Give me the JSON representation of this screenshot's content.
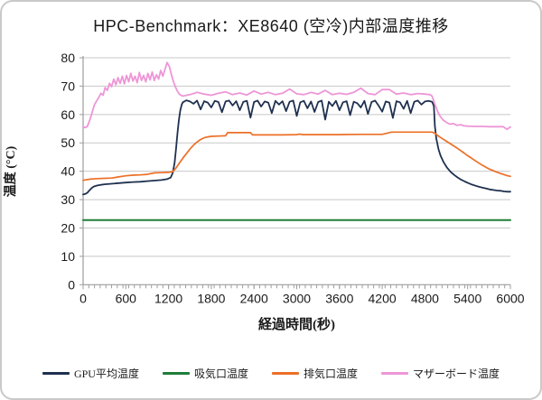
{
  "card": {
    "title": "HPC-Benchmark：XE8640 (空冷)内部温度推移"
  },
  "chart_data": {
    "type": "line",
    "title": "HPC-Benchmark：XE8640 (空冷)内部温度推移",
    "xlabel": "経過時間(秒)",
    "ylabel": "温度 (°C)",
    "xlim": [
      0,
      6000
    ],
    "ylim": [
      0,
      80
    ],
    "x_ticks": [
      0,
      600,
      1200,
      1800,
      2400,
      3000,
      3600,
      4200,
      4800,
      5400,
      6000
    ],
    "y_ticks": [
      0,
      10,
      20,
      30,
      40,
      50,
      60,
      70,
      80
    ],
    "x_minor_tick_interval": 80,
    "grid": "horizontal",
    "grid_color": "#c8c8c8",
    "axis_color": "#9d9d9d",
    "legend_position": "bottom",
    "series": [
      {
        "name": "GPU平均温度",
        "id": "gpu",
        "color": "#1f3050",
        "width": 1.8,
        "points": [
          [
            0,
            31.8
          ],
          [
            30,
            32.0
          ],
          [
            60,
            32.4
          ],
          [
            90,
            33.3
          ],
          [
            120,
            34.1
          ],
          [
            150,
            34.6
          ],
          [
            200,
            35.0
          ],
          [
            250,
            35.2
          ],
          [
            300,
            35.4
          ],
          [
            400,
            35.6
          ],
          [
            500,
            35.8
          ],
          [
            600,
            36.0
          ],
          [
            700,
            36.2
          ],
          [
            800,
            36.3
          ],
          [
            900,
            36.5
          ],
          [
            1000,
            36.7
          ],
          [
            1100,
            36.9
          ],
          [
            1180,
            37.2
          ],
          [
            1230,
            37.8
          ],
          [
            1260,
            39.5
          ],
          [
            1285,
            43.0
          ],
          [
            1305,
            48.0
          ],
          [
            1325,
            53.5
          ],
          [
            1345,
            58.0
          ],
          [
            1365,
            61.5
          ],
          [
            1385,
            63.5
          ],
          [
            1400,
            64.3
          ],
          [
            1450,
            65.0
          ],
          [
            1500,
            64.6
          ],
          [
            1550,
            63.8
          ],
          [
            1600,
            64.9
          ],
          [
            1650,
            61.8
          ],
          [
            1700,
            64.7
          ],
          [
            1750,
            64.2
          ],
          [
            1800,
            62.5
          ],
          [
            1850,
            64.8
          ],
          [
            1900,
            64.4
          ],
          [
            1950,
            60.8
          ],
          [
            2000,
            64.6
          ],
          [
            2050,
            64.9
          ],
          [
            2100,
            63.2
          ],
          [
            2150,
            64.7
          ],
          [
            2200,
            61.5
          ],
          [
            2250,
            64.5
          ],
          [
            2300,
            64.8
          ],
          [
            2350,
            58.9
          ],
          [
            2400,
            64.4
          ],
          [
            2450,
            64.9
          ],
          [
            2500,
            62.8
          ],
          [
            2550,
            64.6
          ],
          [
            2600,
            64.2
          ],
          [
            2650,
            60.5
          ],
          [
            2700,
            64.8
          ],
          [
            2750,
            63.5
          ],
          [
            2800,
            64.7
          ],
          [
            2850,
            61.2
          ],
          [
            2900,
            64.5
          ],
          [
            2950,
            64.9
          ],
          [
            3000,
            59.5
          ],
          [
            3050,
            64.3
          ],
          [
            3100,
            64.8
          ],
          [
            3150,
            62.2
          ],
          [
            3200,
            64.6
          ],
          [
            3250,
            60.9
          ],
          [
            3300,
            64.4
          ],
          [
            3350,
            64.9
          ],
          [
            3400,
            58.2
          ],
          [
            3450,
            64.5
          ],
          [
            3500,
            63.0
          ],
          [
            3550,
            64.8
          ],
          [
            3600,
            61.5
          ],
          [
            3650,
            64.3
          ],
          [
            3700,
            64.7
          ],
          [
            3750,
            59.8
          ],
          [
            3800,
            64.5
          ],
          [
            3850,
            64.0
          ],
          [
            3900,
            62.5
          ],
          [
            3950,
            64.8
          ],
          [
            4000,
            60.2
          ],
          [
            4050,
            64.4
          ],
          [
            4100,
            64.9
          ],
          [
            4150,
            63.1
          ],
          [
            4200,
            61.0
          ],
          [
            4250,
            64.6
          ],
          [
            4300,
            64.2
          ],
          [
            4350,
            58.8
          ],
          [
            4400,
            64.7
          ],
          [
            4450,
            64.3
          ],
          [
            4500,
            62.0
          ],
          [
            4550,
            64.8
          ],
          [
            4600,
            60.5
          ],
          [
            4650,
            64.5
          ],
          [
            4700,
            64.9
          ],
          [
            4750,
            63.5
          ],
          [
            4800,
            64.6
          ],
          [
            4850,
            64.8
          ],
          [
            4900,
            64.5
          ],
          [
            4925,
            63.0
          ],
          [
            4940,
            56.0
          ],
          [
            4960,
            51.5
          ],
          [
            4990,
            47.8
          ],
          [
            5020,
            45.5
          ],
          [
            5060,
            43.3
          ],
          [
            5110,
            41.3
          ],
          [
            5160,
            39.8
          ],
          [
            5210,
            38.7
          ],
          [
            5260,
            37.8
          ],
          [
            5310,
            37.0
          ],
          [
            5360,
            36.4
          ],
          [
            5410,
            35.8
          ],
          [
            5460,
            35.3
          ],
          [
            5510,
            34.9
          ],
          [
            5560,
            34.5
          ],
          [
            5610,
            34.2
          ],
          [
            5660,
            33.9
          ],
          [
            5710,
            33.6
          ],
          [
            5760,
            33.4
          ],
          [
            5810,
            33.2
          ],
          [
            5860,
            33.1
          ],
          [
            5910,
            32.9
          ],
          [
            5960,
            32.8
          ],
          [
            6000,
            32.8
          ]
        ]
      },
      {
        "name": "吸気口温度",
        "id": "intake",
        "color": "#1f7d38",
        "width": 2,
        "points": [
          [
            0,
            22.8
          ],
          [
            3000,
            22.8
          ],
          [
            6000,
            22.8
          ]
        ]
      },
      {
        "name": "排気口温度",
        "id": "exhaust",
        "color": "#ec6f26",
        "width": 1.7,
        "points": [
          [
            0,
            36.8
          ],
          [
            100,
            37.2
          ],
          [
            200,
            37.4
          ],
          [
            300,
            37.5
          ],
          [
            400,
            37.6
          ],
          [
            500,
            38.0
          ],
          [
            600,
            38.4
          ],
          [
            700,
            38.6
          ],
          [
            800,
            38.7
          ],
          [
            900,
            38.9
          ],
          [
            1000,
            39.4
          ],
          [
            1100,
            39.5
          ],
          [
            1200,
            39.6
          ],
          [
            1260,
            39.9
          ],
          [
            1300,
            41.0
          ],
          [
            1350,
            42.8
          ],
          [
            1400,
            44.6
          ],
          [
            1450,
            46.2
          ],
          [
            1500,
            47.8
          ],
          [
            1550,
            49.2
          ],
          [
            1600,
            50.3
          ],
          [
            1650,
            51.2
          ],
          [
            1700,
            51.8
          ],
          [
            1750,
            52.1
          ],
          [
            1800,
            52.3
          ],
          [
            1900,
            52.4
          ],
          [
            2000,
            52.5
          ],
          [
            2030,
            53.6
          ],
          [
            2350,
            53.6
          ],
          [
            2380,
            52.8
          ],
          [
            2600,
            52.8
          ],
          [
            2800,
            52.8
          ],
          [
            3000,
            52.9
          ],
          [
            3040,
            53.1
          ],
          [
            3080,
            52.9
          ],
          [
            3300,
            52.9
          ],
          [
            3600,
            52.9
          ],
          [
            3900,
            53.0
          ],
          [
            4200,
            53.0
          ],
          [
            4330,
            53.8
          ],
          [
            4600,
            53.8
          ],
          [
            4900,
            53.8
          ],
          [
            4940,
            53.4
          ],
          [
            4970,
            52.8
          ],
          [
            5000,
            52.2
          ],
          [
            5050,
            51.4
          ],
          [
            5100,
            50.6
          ],
          [
            5150,
            49.8
          ],
          [
            5200,
            49.0
          ],
          [
            5250,
            48.2
          ],
          [
            5300,
            47.3
          ],
          [
            5350,
            46.4
          ],
          [
            5400,
            45.5
          ],
          [
            5450,
            44.7
          ],
          [
            5500,
            43.8
          ],
          [
            5550,
            43.0
          ],
          [
            5600,
            42.2
          ],
          [
            5650,
            41.5
          ],
          [
            5700,
            40.8
          ],
          [
            5750,
            40.3
          ],
          [
            5800,
            39.8
          ],
          [
            5850,
            39.3
          ],
          [
            5900,
            38.9
          ],
          [
            5950,
            38.5
          ],
          [
            6000,
            38.2
          ]
        ]
      },
      {
        "name": "マザーボード温度",
        "id": "motherboard",
        "color": "#ee96d7",
        "width": 1.8,
        "points": [
          [
            0,
            55.6
          ],
          [
            30,
            55.4
          ],
          [
            60,
            55.8
          ],
          [
            100,
            58.5
          ],
          [
            130,
            61.0
          ],
          [
            160,
            63.5
          ],
          [
            190,
            64.8
          ],
          [
            220,
            66.0
          ],
          [
            250,
            67.5
          ],
          [
            280,
            66.8
          ],
          [
            310,
            69.5
          ],
          [
            340,
            68.5
          ],
          [
            370,
            71.0
          ],
          [
            400,
            69.8
          ],
          [
            430,
            72.5
          ],
          [
            460,
            70.5
          ],
          [
            490,
            73.0
          ],
          [
            520,
            71.0
          ],
          [
            550,
            73.5
          ],
          [
            580,
            70.8
          ],
          [
            610,
            73.8
          ],
          [
            640,
            71.5
          ],
          [
            670,
            74.5
          ],
          [
            700,
            71.8
          ],
          [
            730,
            73.5
          ],
          [
            760,
            71.2
          ],
          [
            790,
            74.8
          ],
          [
            820,
            72.0
          ],
          [
            850,
            73.8
          ],
          [
            880,
            71.5
          ],
          [
            910,
            74.5
          ],
          [
            940,
            72.2
          ],
          [
            970,
            75.0
          ],
          [
            1000,
            72.0
          ],
          [
            1030,
            74.0
          ],
          [
            1060,
            72.5
          ],
          [
            1090,
            75.5
          ],
          [
            1120,
            73.5
          ],
          [
            1150,
            76.0
          ],
          [
            1180,
            78.3
          ],
          [
            1210,
            77.0
          ],
          [
            1240,
            74.0
          ],
          [
            1270,
            71.5
          ],
          [
            1300,
            69.5
          ],
          [
            1330,
            68.0
          ],
          [
            1360,
            67.0
          ],
          [
            1400,
            66.5
          ],
          [
            1500,
            67.0
          ],
          [
            1600,
            67.8
          ],
          [
            1700,
            67.2
          ],
          [
            1800,
            66.8
          ],
          [
            1900,
            67.5
          ],
          [
            2000,
            68.0
          ],
          [
            2100,
            67.0
          ],
          [
            2200,
            67.6
          ],
          [
            2300,
            66.9
          ],
          [
            2400,
            68.3
          ],
          [
            2500,
            67.2
          ],
          [
            2600,
            67.8
          ],
          [
            2700,
            67.0
          ],
          [
            2800,
            67.5
          ],
          [
            2900,
            69.0
          ],
          [
            3000,
            67.3
          ],
          [
            3100,
            67.0
          ],
          [
            3200,
            67.8
          ],
          [
            3300,
            67.2
          ],
          [
            3400,
            68.5
          ],
          [
            3500,
            67.0
          ],
          [
            3600,
            67.5
          ],
          [
            3700,
            67.1
          ],
          [
            3800,
            67.8
          ],
          [
            3900,
            69.3
          ],
          [
            4000,
            67.4
          ],
          [
            4100,
            67.0
          ],
          [
            4200,
            68.8
          ],
          [
            4300,
            68.8
          ],
          [
            4400,
            67.2
          ],
          [
            4500,
            67.6
          ],
          [
            4600,
            67.0
          ],
          [
            4700,
            67.4
          ],
          [
            4800,
            67.2
          ],
          [
            4870,
            67.0
          ],
          [
            4900,
            66.5
          ],
          [
            4920,
            65.0
          ],
          [
            4950,
            63.0
          ],
          [
            4980,
            61.0
          ],
          [
            5010,
            59.5
          ],
          [
            5050,
            58.2
          ],
          [
            5100,
            57.2
          ],
          [
            5150,
            56.6
          ],
          [
            5200,
            56.8
          ],
          [
            5250,
            56.2
          ],
          [
            5300,
            56.4
          ],
          [
            5350,
            56.0
          ],
          [
            5400,
            55.9
          ],
          [
            5500,
            55.8
          ],
          [
            5600,
            55.8
          ],
          [
            5700,
            55.7
          ],
          [
            5800,
            55.7
          ],
          [
            5900,
            55.7
          ],
          [
            5950,
            54.8
          ],
          [
            6000,
            55.6
          ]
        ]
      }
    ]
  }
}
